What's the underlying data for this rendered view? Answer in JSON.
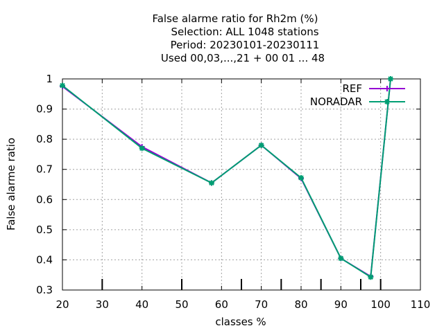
{
  "chart_data": {
    "type": "line",
    "title_lines": [
      "False alarme ratio  for Rh2m (%)",
      "Selection: ALL   1048 stations",
      "Period: 20230101-20230111",
      "Used  00,03,...,21  + 00 01 ... 48"
    ],
    "xlabel": "classes %",
    "ylabel": "False alarme ratio",
    "xlim": [
      20,
      110
    ],
    "ylim": [
      0.3,
      1.0
    ],
    "x_ticks": [
      "20",
      "30",
      "40",
      "50",
      "60",
      "70",
      "80",
      "90",
      "100",
      "110"
    ],
    "y_ticks": [
      "0.3",
      "0.4",
      "0.5",
      "0.6",
      "0.7",
      "0.8",
      "0.9",
      "1"
    ],
    "grid": true,
    "legend_position": "top-right",
    "class_marks": [
      30,
      50,
      65,
      75,
      85,
      95,
      100
    ],
    "series": [
      {
        "name": "REF",
        "color": "#9400d3",
        "marker": "plus",
        "x": [
          20,
          40,
          57.5,
          70,
          80,
          90,
          97.5,
          102.5
        ],
        "y": [
          0.975,
          0.775,
          0.655,
          0.78,
          0.67,
          0.405,
          0.345,
          1.0
        ]
      },
      {
        "name": "NORADAR",
        "color": "#009e73",
        "marker": "star",
        "x": [
          20,
          40,
          57.5,
          70,
          80,
          90,
          97.5,
          102.5
        ],
        "y": [
          0.978,
          0.77,
          0.655,
          0.78,
          0.672,
          0.405,
          0.343,
          1.0
        ]
      }
    ]
  }
}
